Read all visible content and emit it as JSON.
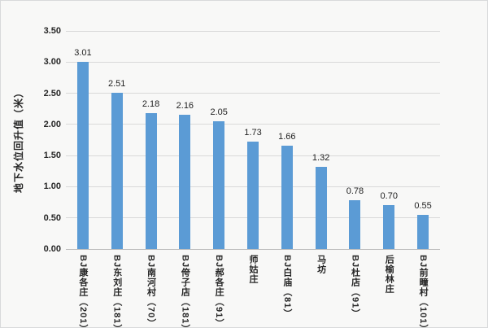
{
  "chart_data": {
    "type": "bar",
    "title": "",
    "xlabel": "",
    "ylabel": "地下水位回升值（米）",
    "categories": [
      "BJ康各庄（201）",
      "BJ东刘庄（181）",
      "BJ南河村（70）",
      "BJ侉子店（181）",
      "BJ郝各庄（91）",
      "师姑庄",
      "BJ白庙（81）",
      "马坊",
      "BJ杜店（91）",
      "后榆林庄",
      "BJ前疃村（101）"
    ],
    "values": [
      3.01,
      2.51,
      2.18,
      2.16,
      2.05,
      1.73,
      1.66,
      1.32,
      0.78,
      0.7,
      0.55
    ],
    "value_labels": [
      "3.01",
      "2.51",
      "2.18",
      "2.16",
      "2.05",
      "1.73",
      "1.66",
      "1.32",
      "0.78",
      "0.70",
      "0.55"
    ],
    "ylim": [
      0,
      3.5
    ],
    "ytick_labels": [
      "0.00",
      "0.50",
      "1.00",
      "1.50",
      "2.00",
      "2.50",
      "3.00",
      "3.50"
    ],
    "grid": true,
    "legend": false,
    "layout_hint": "horizontal gridlines only, data labels above bars, category labels rotated vertical",
    "colors": {
      "bar": "#5B9BD5",
      "gridline": "#D9D9D9",
      "axis_line": "#BFBFBF",
      "text": "#262626",
      "background": "#F8F8F7",
      "border": "#D8DADB"
    }
  }
}
